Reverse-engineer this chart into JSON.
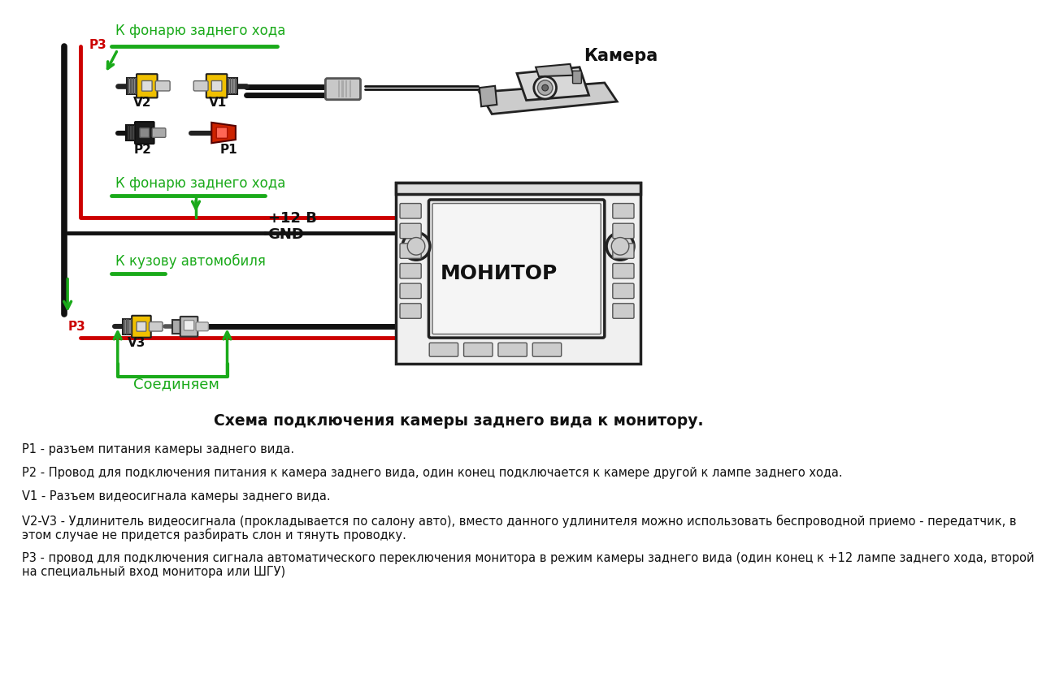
{
  "bg_color": "#ffffff",
  "title": "Схема подключения камеры заднего вида к монитору.",
  "green_color": "#1aaa1a",
  "red_color": "#cc0000",
  "black_color": "#111111",
  "gray_color": "#999999",
  "yellow_color": "#f0c000",
  "dark_gray": "#444444",
  "label_p3_top": "P3",
  "label_k_fonary": "К фонарю заднего хода",
  "label_k_fonary2": "К фонарю заднего хода",
  "label_k_kuzovu": "К кузову автомобиля",
  "label_soedinjaem": "Соединяем",
  "label_v2": "V2",
  "label_v1": "V1",
  "label_p2": "P2",
  "label_p1": "P1",
  "label_v3": "V3",
  "label_12v": "+12 В",
  "label_gnd": "GND",
  "label_monitor": "МОНИТОР",
  "label_camera": "Камера",
  "legend_p1": "P1 - разъем питания камеры заднего вида.",
  "legend_p2": "P2 - Провод для подключения питания к камера заднего вида, один конец подключается к камере другой к лампе заднего хода.",
  "legend_v1": "V1 - Разъем видеосигнала камеры заднего вида.",
  "legend_v2v3": "V2-V3 - Удлинитель видеосигнала (прокладывается по салону авто), вместо данного удлинителя можно использовать беспроводной приемо - передатчик, в\nэтом случае не придется разбирать слон и тянуть проводку.",
  "legend_p3": "P3 - провод для подключения сигнала автоматического переключения монитора в режим камеры заднего вида (один конец к +12 лампе заднего хода, второй\nна специальный вход монитора или ШГУ)"
}
